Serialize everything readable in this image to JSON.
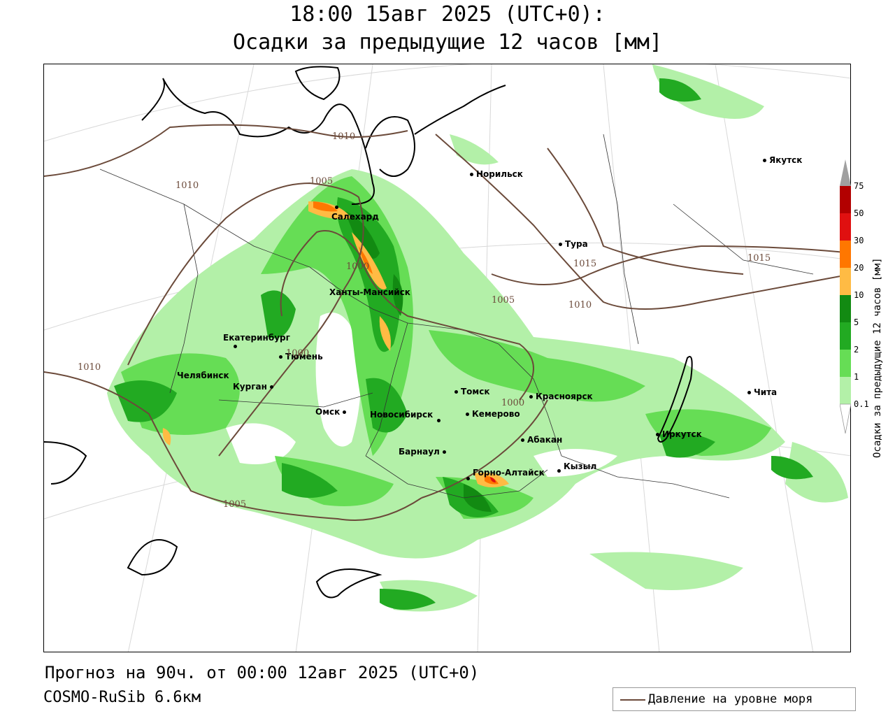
{
  "title_line1": "18:00 15авг 2025 (UTC+0):",
  "title_line2": "Осадки за предыдущие 12 часов [мм]",
  "forecast_text": "Прогноз на 90ч. от 00:00 12авг 2025 (UTC+0)",
  "model_text": "COSMO-RuSib 6.6км",
  "legend_label": "Давление на уровне моря",
  "colorbar": {
    "title": "Осадки за предыдущие 12 часов [мм]",
    "levels": [
      "75",
      "50",
      "30",
      "20",
      "10",
      "5",
      "2",
      "1",
      "0.1"
    ],
    "colors": [
      "#a0a0a0",
      "#b20000",
      "#e01010",
      "#ff7700",
      "#ffbb44",
      "#128a12",
      "#22aa22",
      "#66dd55",
      "#b3f0a8"
    ]
  },
  "cities": [
    {
      "name": "Норильск"
    },
    {
      "name": "Якутск"
    },
    {
      "name": "Салехард"
    },
    {
      "name": "Тура"
    },
    {
      "name": "Ханты-Мансийск"
    },
    {
      "name": "Екатеринбург"
    },
    {
      "name": "Челябинск"
    },
    {
      "name": "Курган"
    },
    {
      "name": "Тюмень"
    },
    {
      "name": "Омск"
    },
    {
      "name": "Томск"
    },
    {
      "name": "Новосибирск"
    },
    {
      "name": "Кемерово"
    },
    {
      "name": "Красноярск"
    },
    {
      "name": "Барнаул"
    },
    {
      "name": "Абакан"
    },
    {
      "name": "Горно-Алтайск"
    },
    {
      "name": "Кызыл"
    },
    {
      "name": "Иркутск"
    },
    {
      "name": "Чита"
    }
  ],
  "isobars": [
    "1010",
    "1010",
    "1005",
    "1000",
    "1005",
    "1010",
    "1015",
    "1015",
    "1000",
    "1010",
    "1000",
    "1005"
  ]
}
